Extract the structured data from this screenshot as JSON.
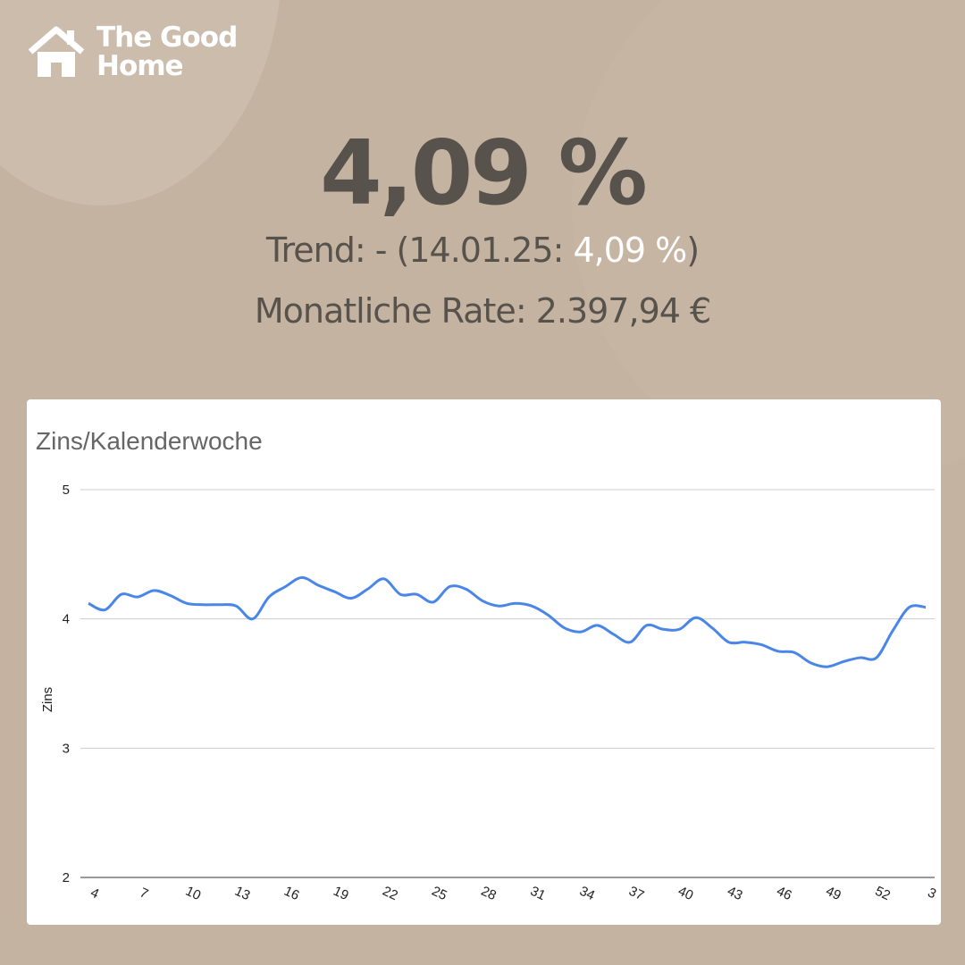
{
  "logo": {
    "line1": "The Good",
    "line2": "Home"
  },
  "headline": "4,09 %",
  "trend": {
    "prefix": "Trend: - (14.01.25: ",
    "value": "4,09 %",
    "suffix": ")"
  },
  "monthly_rate": "Monatliche Rate: 2.397,94 €",
  "chart_data": {
    "type": "line",
    "title": "Zins/Kalenderwoche",
    "y_label": "Zins",
    "categories": [
      4,
      null,
      null,
      7,
      null,
      null,
      10,
      null,
      null,
      13,
      null,
      null,
      16,
      null,
      null,
      19,
      null,
      null,
      22,
      null,
      null,
      25,
      null,
      null,
      28,
      null,
      null,
      31,
      null,
      null,
      34,
      null,
      null,
      37,
      null,
      null,
      40,
      null,
      null,
      43,
      null,
      null,
      46,
      null,
      null,
      49,
      null,
      null,
      52,
      null,
      null,
      3
    ],
    "series": [
      {
        "name": "Zins",
        "color": "#4a86e8",
        "values": [
          4.12,
          4.07,
          4.19,
          4.17,
          4.22,
          4.18,
          4.12,
          4.11,
          4.11,
          4.1,
          4.0,
          4.17,
          4.25,
          4.32,
          4.26,
          4.21,
          4.16,
          4.23,
          4.31,
          4.19,
          4.19,
          4.13,
          4.25,
          4.23,
          4.14,
          4.1,
          4.12,
          4.1,
          4.03,
          3.93,
          3.9,
          3.95,
          3.88,
          3.82,
          3.95,
          3.92,
          3.92,
          4.01,
          3.93,
          3.82,
          3.82,
          3.8,
          3.75,
          3.74,
          3.66,
          3.63,
          3.67,
          3.7,
          3.7,
          3.91,
          4.09,
          4.09
        ]
      }
    ],
    "ylim": [
      2,
      5
    ],
    "yticks": [
      2,
      3,
      4,
      5
    ],
    "grid": true
  }
}
